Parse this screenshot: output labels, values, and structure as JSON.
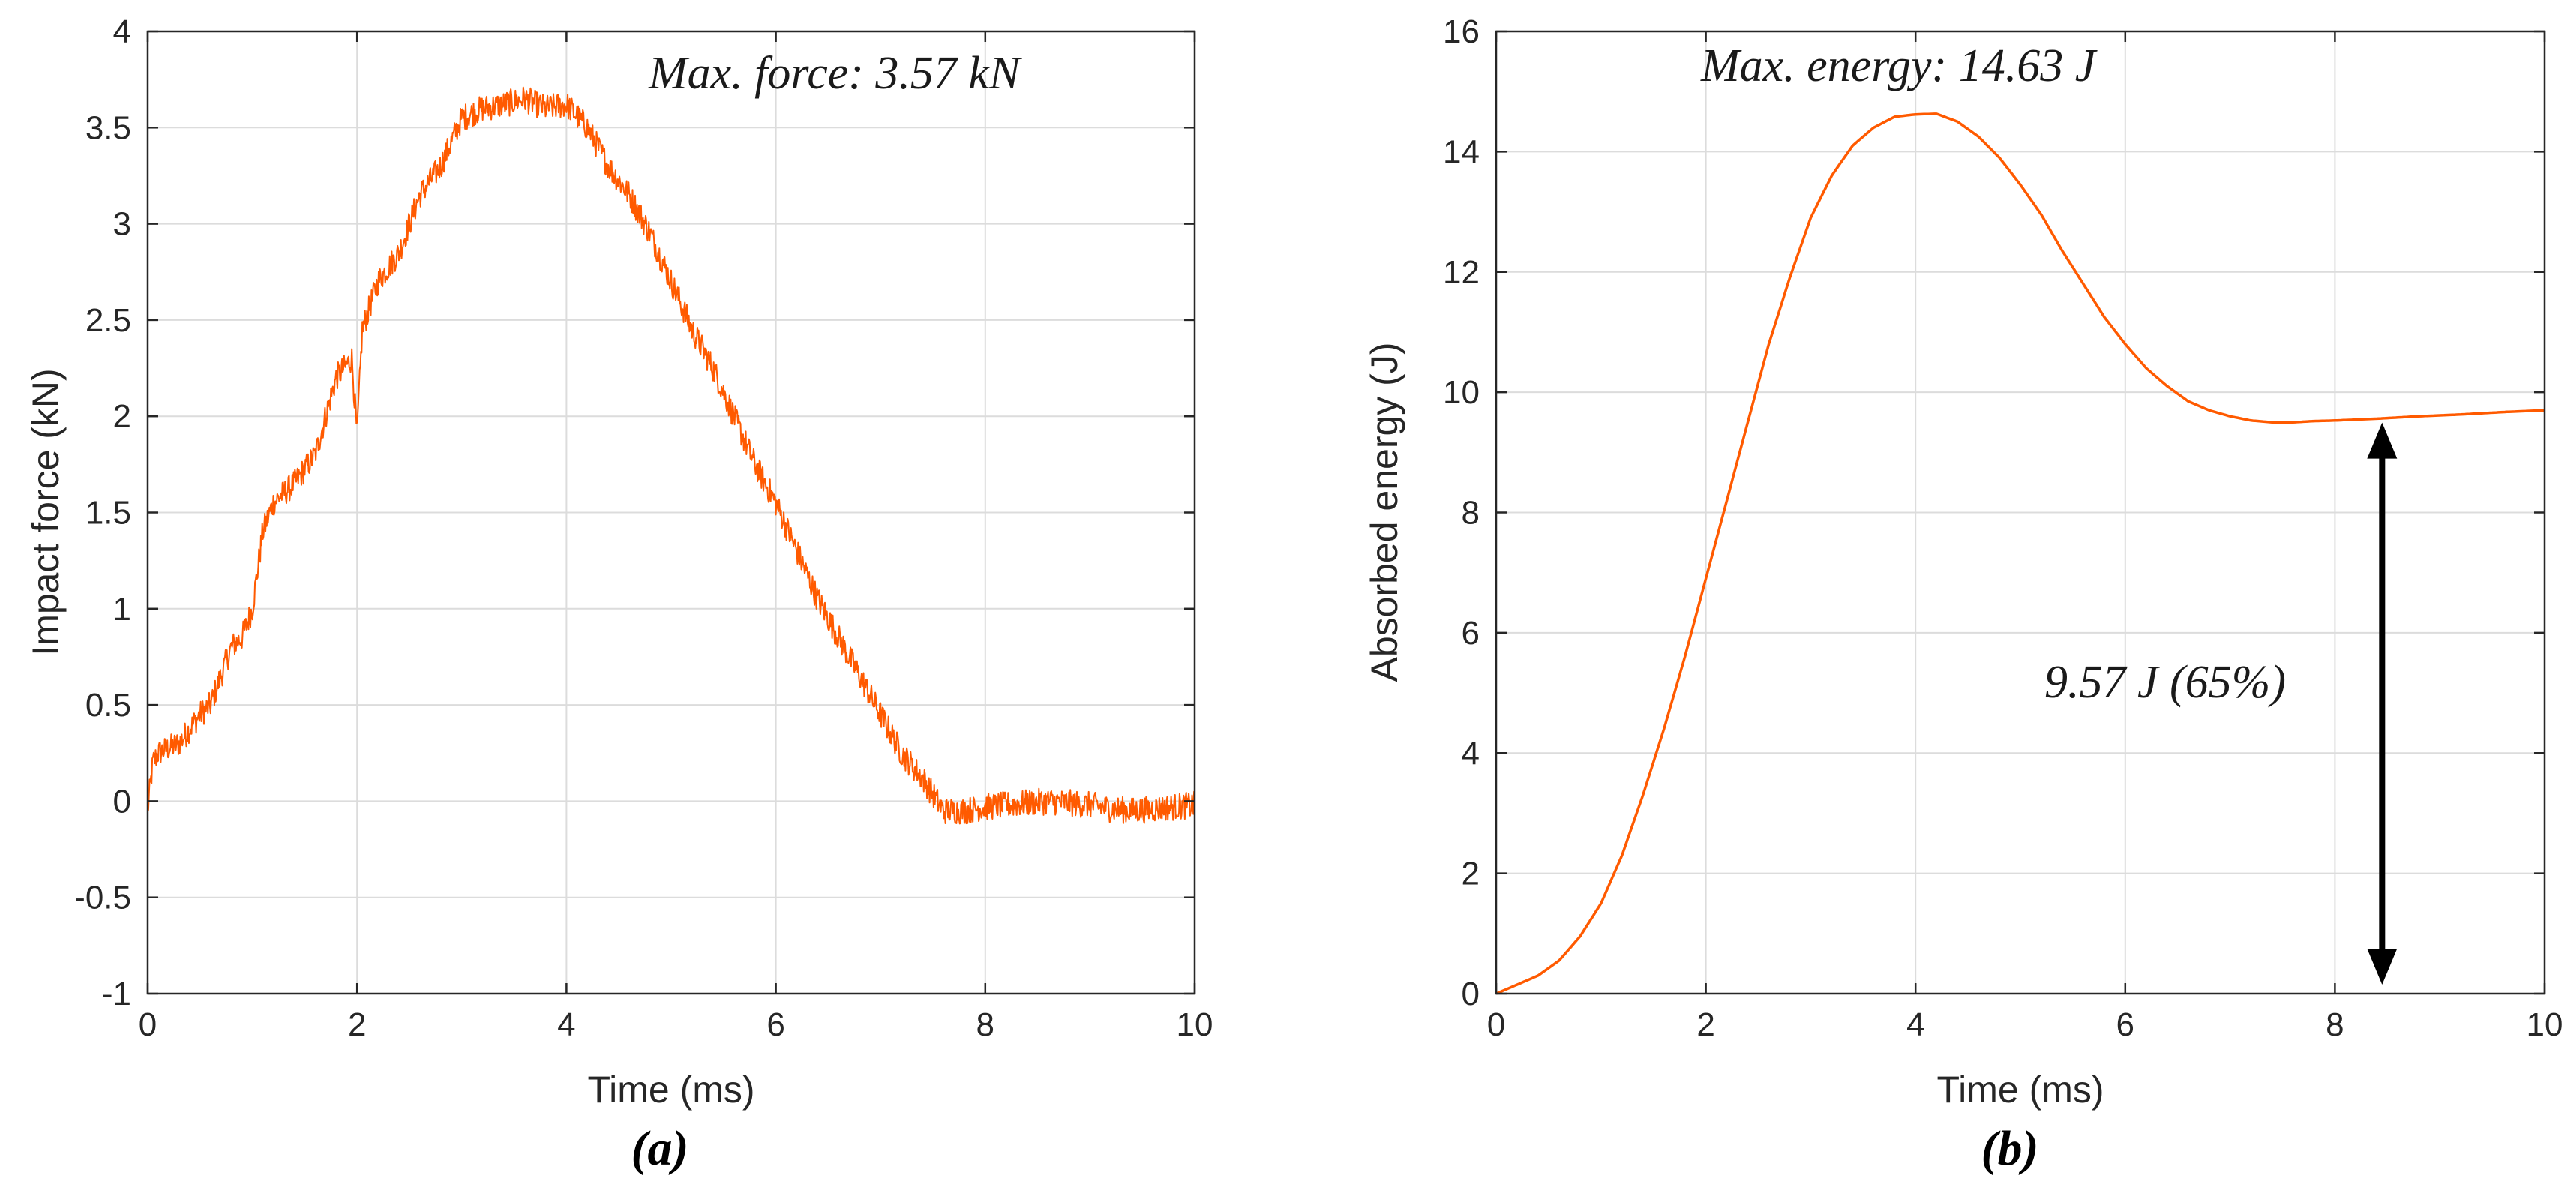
{
  "chart_data": [
    {
      "type": "line",
      "caption": "(a)",
      "xlabel": "Time (ms)",
      "ylabel": "Impact force (kN)",
      "xlim": [
        0,
        10
      ],
      "ylim": [
        -1,
        4
      ],
      "xticks": [
        0,
        2,
        4,
        6,
        8,
        10
      ],
      "yticks": [
        -1,
        -0.5,
        0,
        0.5,
        1,
        1.5,
        2,
        2.5,
        3,
        3.5,
        4
      ],
      "ytick_labels": [
        "-1",
        "-0.5",
        "0",
        "0.5",
        "1",
        "1.5",
        "2",
        "2.5",
        "3",
        "3.5",
        "4"
      ],
      "grid": true,
      "annotation": "Max. force: 3.57 kN",
      "noise_amplitude": 0.07,
      "series": [
        {
          "name": "Impact force",
          "color": "#ff5a00",
          "x": [
            0,
            0.05,
            0.1,
            0.3,
            0.5,
            0.6,
            0.7,
            0.8,
            0.9,
            1.0,
            1.1,
            1.2,
            1.4,
            1.6,
            1.8,
            1.95,
            2.0,
            2.05,
            2.2,
            2.4,
            2.6,
            2.8,
            3.0,
            3.2,
            3.4,
            3.6,
            3.8,
            4.0,
            4.2,
            4.4,
            4.6,
            4.8,
            5.0,
            5.2,
            5.4,
            5.6,
            5.8,
            6.0,
            6.2,
            6.4,
            6.6,
            6.8,
            7.0,
            7.2,
            7.4,
            7.6,
            7.8,
            8.0,
            8.2,
            8.4,
            8.6,
            8.8,
            9.0,
            9.2,
            9.4,
            9.6,
            9.8,
            10.0
          ],
          "values": [
            -0.05,
            0.2,
            0.25,
            0.3,
            0.45,
            0.5,
            0.65,
            0.8,
            0.85,
            1.0,
            1.4,
            1.55,
            1.65,
            1.8,
            2.2,
            2.3,
            1.9,
            2.45,
            2.7,
            2.85,
            3.15,
            3.3,
            3.55,
            3.6,
            3.62,
            3.65,
            3.6,
            3.62,
            3.5,
            3.3,
            3.15,
            2.95,
            2.7,
            2.45,
            2.25,
            2.0,
            1.75,
            1.55,
            1.3,
            1.05,
            0.85,
            0.65,
            0.45,
            0.25,
            0.12,
            -0.05,
            -0.05,
            -0.03,
            -0.02,
            -0.01,
            0.0,
            -0.01,
            -0.02,
            -0.04,
            -0.05,
            -0.04,
            -0.03,
            -0.02
          ]
        }
      ]
    },
    {
      "type": "line",
      "caption": "(b)",
      "xlabel": "Time (ms)",
      "ylabel": "Absorbed energy (J)",
      "xlim": [
        0,
        10
      ],
      "ylim": [
        0,
        16
      ],
      "xticks": [
        0,
        2,
        4,
        6,
        8,
        10
      ],
      "yticks": [
        0,
        2,
        4,
        6,
        8,
        10,
        12,
        14,
        16
      ],
      "ytick_labels": [
        "0",
        "2",
        "4",
        "6",
        "8",
        "10",
        "12",
        "14",
        "16"
      ],
      "grid": true,
      "annotation": "Max. energy: 14.63 J",
      "arrow_annotation": {
        "label": "9.57 J (65%)",
        "x": 8.45,
        "y_from": 0,
        "y_to": 9.57
      },
      "series": [
        {
          "name": "Absorbed energy",
          "color": "#ff5a00",
          "x": [
            0,
            0.2,
            0.4,
            0.6,
            0.8,
            1.0,
            1.2,
            1.4,
            1.6,
            1.8,
            2.0,
            2.2,
            2.4,
            2.6,
            2.8,
            3.0,
            3.2,
            3.4,
            3.6,
            3.8,
            4.0,
            4.2,
            4.4,
            4.6,
            4.8,
            5.0,
            5.2,
            5.4,
            5.6,
            5.8,
            6.0,
            6.2,
            6.4,
            6.6,
            6.8,
            7.0,
            7.2,
            7.4,
            7.6,
            7.8,
            8.0,
            8.4,
            8.8,
            9.2,
            9.6,
            10.0
          ],
          "values": [
            0,
            0.15,
            0.3,
            0.55,
            0.95,
            1.5,
            2.3,
            3.3,
            4.4,
            5.6,
            6.9,
            8.2,
            9.5,
            10.8,
            11.9,
            12.9,
            13.6,
            14.1,
            14.4,
            14.58,
            14.62,
            14.63,
            14.5,
            14.25,
            13.9,
            13.45,
            12.95,
            12.35,
            11.8,
            11.25,
            10.8,
            10.4,
            10.1,
            9.85,
            9.7,
            9.6,
            9.53,
            9.5,
            9.5,
            9.52,
            9.53,
            9.56,
            9.6,
            9.63,
            9.67,
            9.7
          ]
        }
      ]
    }
  ]
}
